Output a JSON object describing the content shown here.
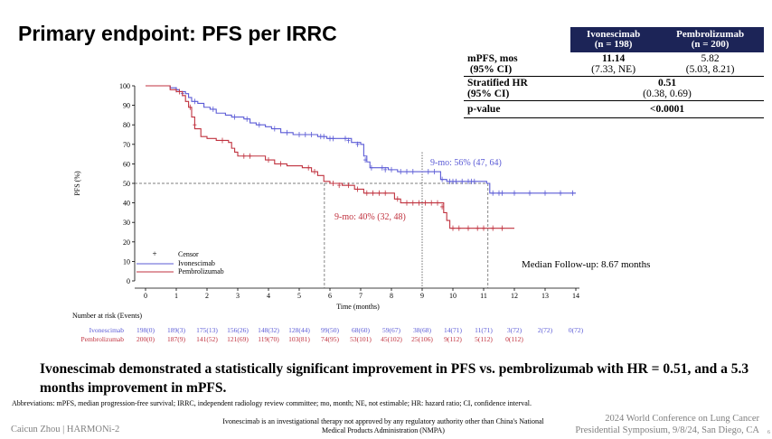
{
  "title": "Primary endpoint: PFS per IRRC",
  "summary_table": {
    "headers": [
      {
        "name": "Ivonescimab",
        "n": "(n = 198)"
      },
      {
        "name": "Pembrolizumab",
        "n": "(n = 200)"
      }
    ],
    "mpfs_label_1": "mPFS, mos",
    "mpfs_label_2": "(95% CI)",
    "mpfs_ivo_value": "11.14",
    "mpfs_ivo_ci": "(7.33, NE)",
    "mpfs_pembro_value": "5.82",
    "mpfs_pembro_ci": "(5.03, 8.21)",
    "hr_label_1": "Stratified HR",
    "hr_label_2": "(95% CI)",
    "hr_value": "0.51",
    "hr_ci": "(0.38, 0.69)",
    "p_label": "p-value",
    "p_value": "<0.0001"
  },
  "chart_data": {
    "type": "line",
    "ylabel": "PFS (%)",
    "xlabel": "Time (months)",
    "xlim": [
      0,
      14
    ],
    "ylim": [
      0,
      100
    ],
    "x_ticks": [
      "0",
      "1",
      "2",
      "3",
      "4",
      "5",
      "6",
      "7",
      "8",
      "9",
      "10",
      "11",
      "12",
      "13",
      "14"
    ],
    "y_ticks": [
      "0",
      "10",
      "20",
      "30",
      "40",
      "50",
      "60",
      "70",
      "80",
      "90",
      "100"
    ],
    "legend": {
      "censor": "Censor",
      "entries": [
        "Ivonescimab",
        "Pembrolizumab"
      ]
    },
    "series": [
      {
        "name": "Ivonescimab",
        "color": "#5b5bd6",
        "points": [
          [
            0,
            100
          ],
          [
            0.6,
            100
          ],
          [
            0.8,
            99
          ],
          [
            1,
            98
          ],
          [
            1.1,
            97
          ],
          [
            1.3,
            96
          ],
          [
            1.4,
            94
          ],
          [
            1.5,
            92
          ],
          [
            1.7,
            91
          ],
          [
            1.9,
            89
          ],
          [
            2.1,
            88
          ],
          [
            2.3,
            86
          ],
          [
            2.6,
            85
          ],
          [
            2.8,
            84
          ],
          [
            3,
            84
          ],
          [
            3.2,
            83
          ],
          [
            3.4,
            81
          ],
          [
            3.6,
            80
          ],
          [
            3.9,
            79
          ],
          [
            4.1,
            78
          ],
          [
            4.4,
            76
          ],
          [
            4.8,
            75
          ],
          [
            5.3,
            75
          ],
          [
            5.6,
            74
          ],
          [
            5.9,
            73
          ],
          [
            6.3,
            73
          ],
          [
            6.7,
            71
          ],
          [
            7,
            70
          ],
          [
            7.1,
            64
          ],
          [
            7.2,
            61
          ],
          [
            7.3,
            58
          ],
          [
            7.6,
            58
          ],
          [
            7.9,
            57
          ],
          [
            8.2,
            56
          ],
          [
            8.6,
            56
          ],
          [
            9,
            56
          ],
          [
            9.5,
            56
          ],
          [
            9.6,
            52
          ],
          [
            9.8,
            51
          ],
          [
            10.8,
            51
          ],
          [
            11.1,
            50
          ],
          [
            11.2,
            45
          ],
          [
            14,
            45
          ]
        ],
        "censors": [
          [
            1.0,
            98
          ],
          [
            1.2,
            96
          ],
          [
            1.6,
            92
          ],
          [
            2.2,
            88
          ],
          [
            2.9,
            84
          ],
          [
            3.3,
            83
          ],
          [
            3.7,
            80
          ],
          [
            4.2,
            78
          ],
          [
            4.6,
            76
          ],
          [
            5.0,
            75
          ],
          [
            5.2,
            75
          ],
          [
            5.4,
            75
          ],
          [
            5.7,
            74
          ],
          [
            5.8,
            74
          ],
          [
            6.0,
            73
          ],
          [
            6.1,
            73
          ],
          [
            6.5,
            73
          ],
          [
            6.6,
            72
          ],
          [
            6.9,
            70
          ],
          [
            7.15,
            62
          ],
          [
            7.35,
            58
          ],
          [
            7.7,
            58
          ],
          [
            7.8,
            57
          ],
          [
            8.0,
            57
          ],
          [
            8.3,
            56
          ],
          [
            8.5,
            56
          ],
          [
            8.7,
            56
          ],
          [
            9.2,
            56
          ],
          [
            9.4,
            56
          ],
          [
            9.65,
            52
          ],
          [
            9.9,
            51
          ],
          [
            10.0,
            51
          ],
          [
            10.1,
            51
          ],
          [
            10.3,
            51
          ],
          [
            10.5,
            51
          ],
          [
            10.6,
            51
          ],
          [
            10.7,
            51
          ],
          [
            11.3,
            45
          ],
          [
            11.5,
            45
          ],
          [
            11.6,
            45
          ],
          [
            12.0,
            45
          ],
          [
            12.5,
            45
          ],
          [
            13.0,
            45
          ],
          [
            13.5,
            45
          ],
          [
            13.9,
            45
          ]
        ]
      },
      {
        "name": "Pembrolizumab",
        "color": "#c0323f",
        "points": [
          [
            0,
            100
          ],
          [
            0.7,
            100
          ],
          [
            0.8,
            98
          ],
          [
            1.0,
            97
          ],
          [
            1.2,
            95
          ],
          [
            1.3,
            92
          ],
          [
            1.4,
            89
          ],
          [
            1.5,
            84
          ],
          [
            1.6,
            78
          ],
          [
            1.8,
            74
          ],
          [
            2.0,
            73
          ],
          [
            2.3,
            72
          ],
          [
            2.7,
            71
          ],
          [
            2.8,
            68
          ],
          [
            2.9,
            66
          ],
          [
            3.0,
            64
          ],
          [
            3.6,
            64
          ],
          [
            3.9,
            62
          ],
          [
            4.2,
            60
          ],
          [
            4.6,
            59
          ],
          [
            5.1,
            58
          ],
          [
            5.4,
            56
          ],
          [
            5.6,
            54
          ],
          [
            5.8,
            51
          ],
          [
            6.0,
            50
          ],
          [
            6.4,
            49
          ],
          [
            6.8,
            47
          ],
          [
            7.1,
            45
          ],
          [
            7.9,
            45
          ],
          [
            8.1,
            42
          ],
          [
            8.3,
            40
          ],
          [
            9.0,
            40
          ],
          [
            9.6,
            40
          ],
          [
            9.7,
            35
          ],
          [
            9.8,
            31
          ],
          [
            9.9,
            27
          ],
          [
            10.3,
            27
          ],
          [
            12.0,
            27
          ]
        ],
        "censors": [
          [
            1.1,
            97
          ],
          [
            1.45,
            89
          ],
          [
            1.6,
            80
          ],
          [
            2.5,
            72
          ],
          [
            3.2,
            64
          ],
          [
            3.4,
            64
          ],
          [
            4.0,
            62
          ],
          [
            4.4,
            60
          ],
          [
            5.3,
            58
          ],
          [
            5.5,
            56
          ],
          [
            6.1,
            50
          ],
          [
            6.3,
            49
          ],
          [
            6.6,
            49
          ],
          [
            6.9,
            47
          ],
          [
            7.2,
            45
          ],
          [
            7.4,
            45
          ],
          [
            7.6,
            45
          ],
          [
            7.8,
            45
          ],
          [
            8.2,
            42
          ],
          [
            8.5,
            40
          ],
          [
            8.7,
            40
          ],
          [
            8.9,
            40
          ],
          [
            9.1,
            40
          ],
          [
            9.3,
            40
          ],
          [
            9.5,
            40
          ],
          [
            9.65,
            38
          ],
          [
            10.0,
            27
          ],
          [
            10.2,
            27
          ],
          [
            10.5,
            27
          ],
          [
            10.8,
            27
          ],
          [
            11.0,
            27
          ],
          [
            11.3,
            27
          ],
          [
            11.6,
            27
          ]
        ]
      }
    ],
    "reference_lines": {
      "median_y": 50,
      "pembro_median_x": 5.82,
      "nine_month_x": 9,
      "ivo_median_x": 11.14
    },
    "annotations": {
      "ivo_9mo": "9-mo: 56% (47, 64)",
      "pembro_9mo": "9-mo: 40% (32, 48)",
      "median_followup": "Median Follow-up: 8.67 months"
    },
    "risk_table": {
      "caption": "Number at risk (Events)",
      "rows": [
        {
          "label": "Ivonescimab",
          "values": [
            "198(0)",
            "189(3)",
            "175(13)",
            "156(26)",
            "148(32)",
            "128(44)",
            "99(50)",
            "68(60)",
            "59(67)",
            "38(68)",
            "14(71)",
            "11(71)",
            "3(72)",
            "2(72)",
            "0(72)"
          ]
        },
        {
          "label": "Pembrolizumab",
          "values": [
            "200(0)",
            "187(9)",
            "141(52)",
            "121(69)",
            "119(70)",
            "103(81)",
            "74(95)",
            "53(101)",
            "45(102)",
            "25(106)",
            "9(112)",
            "5(112)",
            "0(112)"
          ]
        }
      ]
    }
  },
  "conclusion": "Ivonescimab demonstrated a statistically significant improvement in PFS vs. pembrolizumab with HR = 0.51, and a 5.3 months improvement in mPFS.",
  "abbreviations": "Abbreviations: mPFS, median progression-free survival; IRRC, independent radiology review committee; mo, month; NE, not estimable; HR: hazard ratio; CI, confidence interval.",
  "presenter": "Caicun Zhou | HARMONi-2",
  "disclaimer": "Ivonescimab is an investigational therapy not approved by any regulatory authority other than China's National Medical Products Administration (NMPA)",
  "conference_line1": "2024 World Conference on Lung Cancer",
  "conference_line2": "Presidential Symposium, 9/8/24, San Diego, CA",
  "page_number": "6"
}
